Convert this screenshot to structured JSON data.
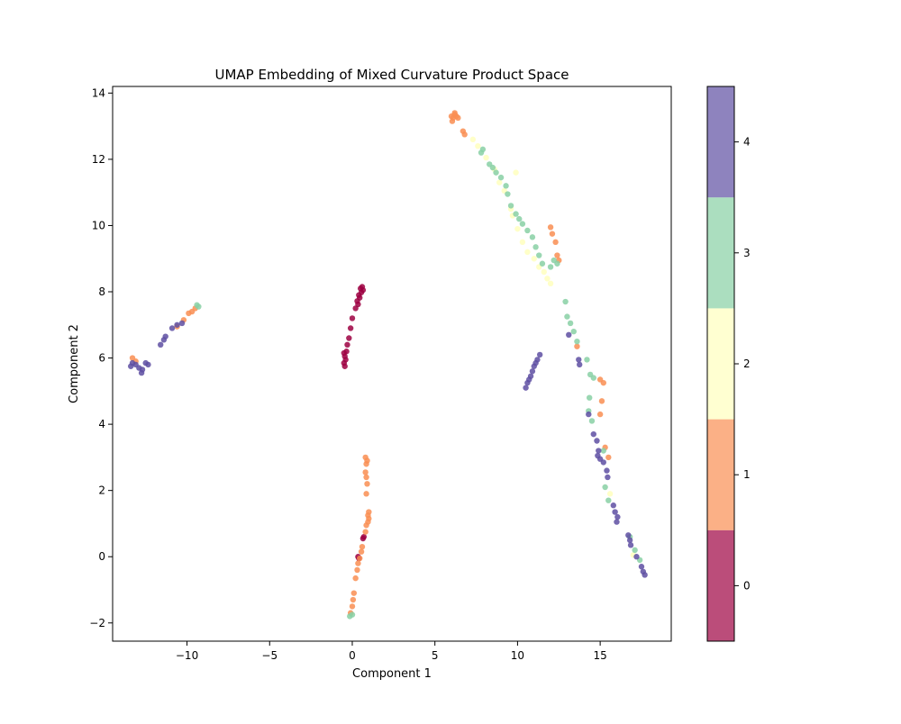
{
  "chart_data": {
    "type": "scatter",
    "title": "UMAP Embedding of Mixed Curvature Product Space",
    "xlabel": "Component 1",
    "ylabel": "Component 2",
    "xlim": [
      -14.5,
      19.3
    ],
    "ylim": [
      -2.55,
      14.2
    ],
    "xticks": [
      -10,
      -5,
      0,
      5,
      10,
      15
    ],
    "xtick_labels": [
      "−10",
      "−5",
      "0",
      "5",
      "10",
      "15"
    ],
    "yticks": [
      -2,
      0,
      2,
      4,
      6,
      8,
      10,
      12,
      14
    ],
    "ytick_labels": [
      "−2",
      "0",
      "2",
      "4",
      "6",
      "8",
      "10",
      "12",
      "14"
    ],
    "grid": false,
    "colorbar": {
      "categories": [
        0,
        1,
        2,
        3,
        4
      ],
      "labels": [
        "0",
        "1",
        "2",
        "3",
        "4"
      ],
      "colors": [
        "#9e0142",
        "#f98e52",
        "#ffffbe",
        "#88d0a4",
        "#5e4fa2"
      ],
      "range": [
        -0.5,
        4.5
      ],
      "alpha": 0.7
    },
    "series": [
      {
        "class": 0,
        "color": "#9e0142",
        "points": [
          [
            0.6,
            8.15
          ],
          [
            0.5,
            8.1
          ],
          [
            0.65,
            8.05
          ],
          [
            0.55,
            7.98
          ],
          [
            0.4,
            7.9
          ],
          [
            0.45,
            7.82
          ],
          [
            0.3,
            7.72
          ],
          [
            0.35,
            7.62
          ],
          [
            0.2,
            7.5
          ],
          [
            0.0,
            7.2
          ],
          [
            -0.1,
            6.9
          ],
          [
            -0.2,
            6.6
          ],
          [
            -0.3,
            6.4
          ],
          [
            -0.35,
            6.2
          ],
          [
            -0.5,
            6.15
          ],
          [
            -0.45,
            6.05
          ],
          [
            -0.4,
            5.95
          ],
          [
            -0.5,
            5.85
          ],
          [
            -0.45,
            5.75
          ],
          [
            0.7,
            0.6
          ],
          [
            0.65,
            0.55
          ],
          [
            0.35,
            0.0
          ],
          [
            0.4,
            -0.05
          ]
        ]
      },
      {
        "class": 1,
        "color": "#f98e52",
        "points": [
          [
            6.0,
            13.3
          ],
          [
            6.1,
            13.25
          ],
          [
            6.2,
            13.35
          ],
          [
            6.3,
            13.3
          ],
          [
            6.2,
            13.4
          ],
          [
            6.05,
            13.15
          ],
          [
            6.4,
            13.25
          ],
          [
            6.7,
            12.85
          ],
          [
            6.8,
            12.75
          ],
          [
            12.0,
            9.95
          ],
          [
            12.1,
            9.75
          ],
          [
            12.3,
            9.5
          ],
          [
            12.4,
            9.1
          ],
          [
            12.5,
            8.95
          ],
          [
            13.6,
            6.35
          ],
          [
            15.0,
            5.35
          ],
          [
            15.2,
            5.25
          ],
          [
            15.1,
            4.7
          ],
          [
            15.0,
            4.3
          ],
          [
            15.3,
            3.3
          ],
          [
            15.5,
            3.0
          ],
          [
            -9.5,
            7.5
          ],
          [
            -9.7,
            7.4
          ],
          [
            -9.9,
            7.35
          ],
          [
            -10.2,
            7.15
          ],
          [
            -10.6,
            6.95
          ],
          [
            -13.3,
            6.0
          ],
          [
            -13.1,
            5.9
          ],
          [
            0.8,
            3.0
          ],
          [
            0.9,
            2.9
          ],
          [
            0.85,
            2.8
          ],
          [
            0.8,
            2.55
          ],
          [
            0.85,
            2.4
          ],
          [
            0.9,
            2.2
          ],
          [
            0.85,
            1.9
          ],
          [
            1.0,
            1.35
          ],
          [
            0.95,
            1.25
          ],
          [
            1.0,
            1.15
          ],
          [
            0.95,
            1.05
          ],
          [
            0.85,
            0.95
          ],
          [
            0.8,
            0.75
          ],
          [
            0.6,
            0.3
          ],
          [
            0.55,
            0.15
          ],
          [
            0.45,
            -0.05
          ],
          [
            0.35,
            -0.2
          ],
          [
            0.3,
            -0.4
          ],
          [
            0.2,
            -0.65
          ],
          [
            0.1,
            -1.1
          ],
          [
            0.05,
            -1.3
          ],
          [
            0.0,
            -1.5
          ],
          [
            -0.1,
            -1.7
          ]
        ]
      },
      {
        "class": 2,
        "color": "#ffffbe",
        "points": [
          [
            7.3,
            12.6
          ],
          [
            7.6,
            12.4
          ],
          [
            8.1,
            12.05
          ],
          [
            8.6,
            11.7
          ],
          [
            8.9,
            11.3
          ],
          [
            9.2,
            11.05
          ],
          [
            9.6,
            10.5
          ],
          [
            9.7,
            10.3
          ],
          [
            10.0,
            9.9
          ],
          [
            10.3,
            9.5
          ],
          [
            10.6,
            9.2
          ],
          [
            11.0,
            9.0
          ],
          [
            11.3,
            8.75
          ],
          [
            11.6,
            8.6
          ],
          [
            11.8,
            8.4
          ],
          [
            12.0,
            8.25
          ],
          [
            15.6,
            1.9
          ],
          [
            17.0,
            0.05
          ],
          [
            9.9,
            11.6
          ]
        ]
      },
      {
        "class": 3,
        "color": "#88d0a4",
        "points": [
          [
            7.8,
            12.2
          ],
          [
            7.9,
            12.3
          ],
          [
            8.3,
            11.85
          ],
          [
            8.5,
            11.75
          ],
          [
            8.7,
            11.6
          ],
          [
            9.0,
            11.45
          ],
          [
            9.3,
            11.2
          ],
          [
            9.4,
            10.95
          ],
          [
            9.6,
            10.6
          ],
          [
            9.9,
            10.35
          ],
          [
            10.1,
            10.2
          ],
          [
            10.3,
            10.05
          ],
          [
            10.6,
            9.85
          ],
          [
            10.9,
            9.65
          ],
          [
            11.1,
            9.35
          ],
          [
            11.3,
            9.1
          ],
          [
            11.5,
            8.85
          ],
          [
            12.2,
            8.95
          ],
          [
            12.4,
            8.85
          ],
          [
            12.0,
            8.75
          ],
          [
            12.9,
            7.7
          ],
          [
            13.0,
            7.25
          ],
          [
            13.2,
            7.05
          ],
          [
            13.4,
            6.8
          ],
          [
            13.6,
            6.5
          ],
          [
            14.2,
            5.95
          ],
          [
            14.4,
            5.5
          ],
          [
            14.6,
            5.4
          ],
          [
            14.35,
            4.8
          ],
          [
            14.3,
            4.4
          ],
          [
            14.5,
            4.1
          ],
          [
            15.2,
            3.2
          ],
          [
            15.3,
            2.1
          ],
          [
            15.5,
            1.7
          ],
          [
            16.8,
            0.6
          ],
          [
            17.1,
            0.2
          ],
          [
            17.4,
            -0.1
          ],
          [
            -9.4,
            7.6
          ],
          [
            -9.3,
            7.55
          ],
          [
            0.0,
            -1.75
          ],
          [
            -0.15,
            -1.8
          ]
        ]
      },
      {
        "class": 4,
        "color": "#5e4fa2",
        "points": [
          [
            10.5,
            5.1
          ],
          [
            10.6,
            5.25
          ],
          [
            10.8,
            5.45
          ],
          [
            10.9,
            5.6
          ],
          [
            11.0,
            5.75
          ],
          [
            11.1,
            5.85
          ],
          [
            11.2,
            5.95
          ],
          [
            11.35,
            6.1
          ],
          [
            10.7,
            5.35
          ],
          [
            13.1,
            6.7
          ],
          [
            13.7,
            5.95
          ],
          [
            13.75,
            5.8
          ],
          [
            14.3,
            4.3
          ],
          [
            14.6,
            3.7
          ],
          [
            14.8,
            3.5
          ],
          [
            14.9,
            3.2
          ],
          [
            14.85,
            3.05
          ],
          [
            15.0,
            2.95
          ],
          [
            15.2,
            2.85
          ],
          [
            15.4,
            2.6
          ],
          [
            15.45,
            2.4
          ],
          [
            15.8,
            1.55
          ],
          [
            15.9,
            1.35
          ],
          [
            16.05,
            1.2
          ],
          [
            16.0,
            1.05
          ],
          [
            16.7,
            0.65
          ],
          [
            16.8,
            0.5
          ],
          [
            16.85,
            0.35
          ],
          [
            17.2,
            0.0
          ],
          [
            17.5,
            -0.3
          ],
          [
            17.6,
            -0.45
          ],
          [
            17.7,
            -0.55
          ],
          [
            -10.3,
            7.05
          ],
          [
            -10.6,
            7.0
          ],
          [
            -10.9,
            6.9
          ],
          [
            -11.3,
            6.65
          ],
          [
            -11.4,
            6.55
          ],
          [
            -11.6,
            6.4
          ],
          [
            -12.5,
            5.85
          ],
          [
            -12.35,
            5.8
          ],
          [
            -12.7,
            5.65
          ],
          [
            -12.75,
            5.55
          ],
          [
            -12.9,
            5.7
          ],
          [
            -13.1,
            5.8
          ],
          [
            -13.3,
            5.85
          ],
          [
            -13.4,
            5.75
          ]
        ]
      }
    ]
  }
}
